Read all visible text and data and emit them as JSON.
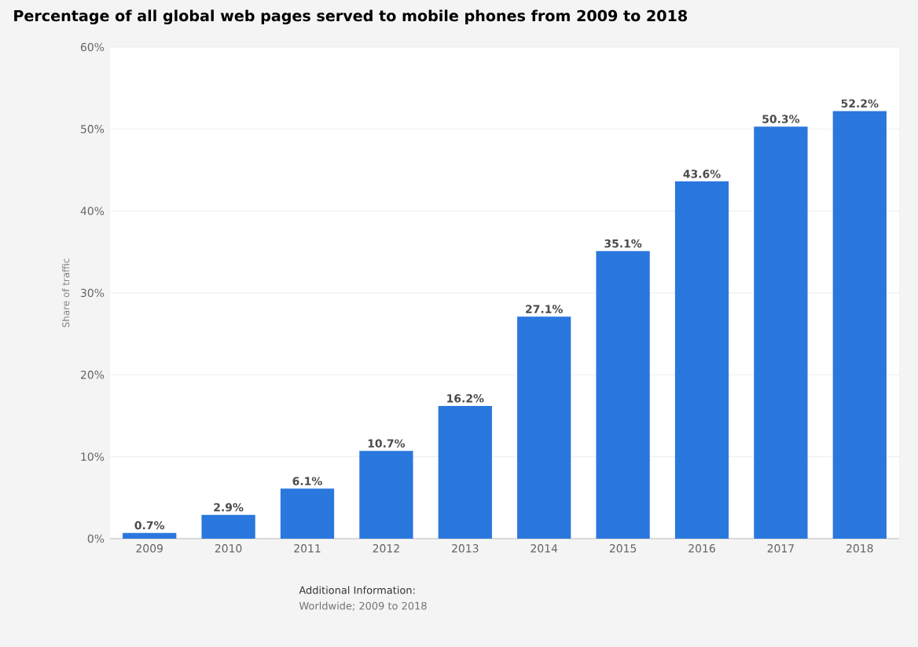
{
  "chart_data": {
    "type": "bar",
    "title": "Percentage of all global web pages served to mobile phones from 2009 to 2018",
    "ylabel": "Share of traffic",
    "categories": [
      "2009",
      "2010",
      "2011",
      "2012",
      "2013",
      "2014",
      "2015",
      "2016",
      "2017",
      "2018"
    ],
    "values": [
      0.7,
      2.9,
      6.1,
      10.7,
      16.2,
      27.1,
      35.1,
      43.6,
      50.3,
      52.2
    ],
    "value_labels": [
      "0.7%",
      "2.9%",
      "6.1%",
      "10.7%",
      "16.2%",
      "27.1%",
      "35.1%",
      "43.6%",
      "50.3%",
      "52.2%"
    ],
    "color": "#2a77de",
    "ylim": [
      0,
      60
    ],
    "yticks": [
      {
        "value": 0,
        "label": "0%"
      },
      {
        "value": 10,
        "label": "10%"
      },
      {
        "value": 20,
        "label": "20%"
      },
      {
        "value": 30,
        "label": "30%"
      },
      {
        "value": 40,
        "label": "40%"
      },
      {
        "value": 50,
        "label": "50%"
      },
      {
        "value": 60,
        "label": "60%"
      }
    ],
    "grid": "y",
    "annotations": [
      "Additional Information:",
      "Worldwide; 2009 to 2018"
    ]
  }
}
